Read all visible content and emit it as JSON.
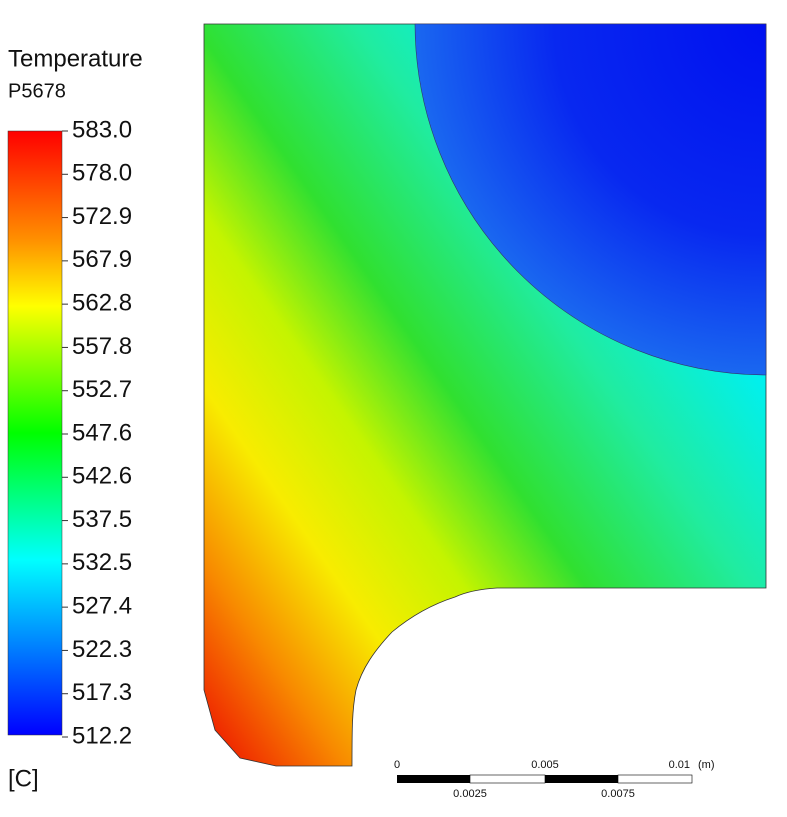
{
  "legend": {
    "title": "Temperature",
    "subtitle": "P5678",
    "labels": [
      "583.0",
      "578.0",
      "572.9",
      "567.9",
      "562.8",
      "557.8",
      "552.7",
      "547.6",
      "542.6",
      "537.5",
      "532.5",
      "527.4",
      "522.3",
      "517.3",
      "512.2"
    ],
    "unit": "[C]"
  },
  "scale_bar": {
    "top_labels": [
      "0",
      "0.005",
      "0.01"
    ],
    "unit": "(m)",
    "bottom_labels": [
      "0.0025",
      "0.0075"
    ]
  }
}
